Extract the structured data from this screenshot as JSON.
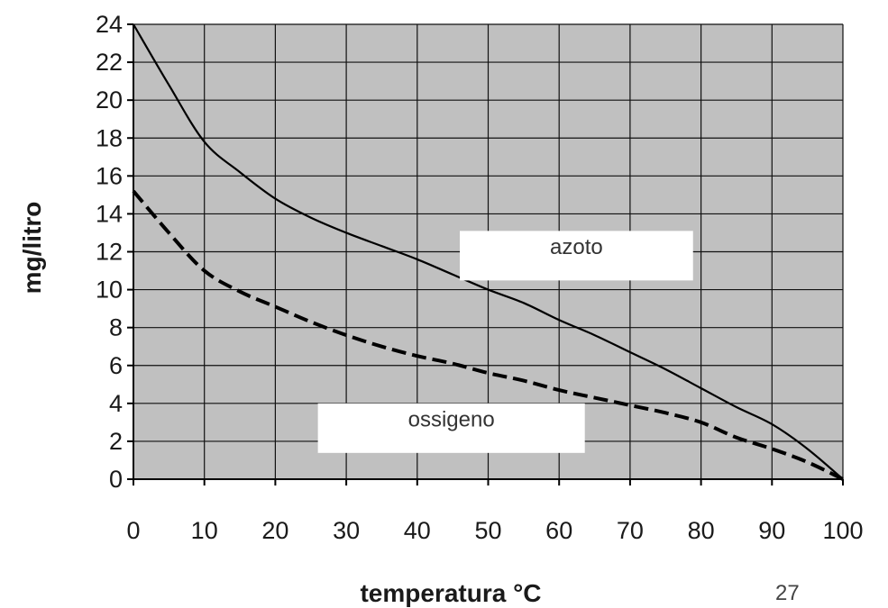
{
  "chart_data": {
    "type": "line",
    "xlabel": "temperatura °C",
    "ylabel": "mg/litro",
    "xlim": [
      0,
      100
    ],
    "ylim": [
      0,
      24
    ],
    "x_ticks": [
      0,
      10,
      20,
      30,
      40,
      50,
      60,
      70,
      80,
      90,
      100
    ],
    "y_ticks": [
      0,
      2,
      4,
      6,
      8,
      10,
      12,
      14,
      16,
      18,
      20,
      22,
      24
    ],
    "grid": true,
    "plot_background": "#c0c0c0",
    "series": [
      {
        "name": "azoto",
        "style": "solid",
        "color": "#000000",
        "x": [
          0,
          5,
          10,
          15,
          20,
          25,
          30,
          35,
          40,
          45,
          50,
          55,
          60,
          65,
          70,
          75,
          80,
          85,
          90,
          95,
          100
        ],
        "y": [
          24,
          20.8,
          17.8,
          16.2,
          14.8,
          13.8,
          13.0,
          12.3,
          11.6,
          10.8,
          10.0,
          9.3,
          8.4,
          7.6,
          6.7,
          5.8,
          4.8,
          3.8,
          2.9,
          1.6,
          0
        ]
      },
      {
        "name": "ossigeno",
        "style": "dashed",
        "color": "#000000",
        "x": [
          0,
          5,
          10,
          15,
          20,
          25,
          30,
          35,
          40,
          45,
          50,
          55,
          60,
          65,
          70,
          75,
          80,
          85,
          90,
          95,
          100
        ],
        "y": [
          15.2,
          13.0,
          11.0,
          9.9,
          9.1,
          8.3,
          7.6,
          7.0,
          6.5,
          6.1,
          5.6,
          5.2,
          4.7,
          4.3,
          3.9,
          3.5,
          3.0,
          2.2,
          1.6,
          0.9,
          0
        ]
      }
    ],
    "annotations": [
      {
        "text": "azoto",
        "x": 46,
        "y": 13.1
      },
      {
        "text": "ossigeno",
        "x": 26,
        "y": 4.0
      }
    ]
  },
  "page_number": "27"
}
